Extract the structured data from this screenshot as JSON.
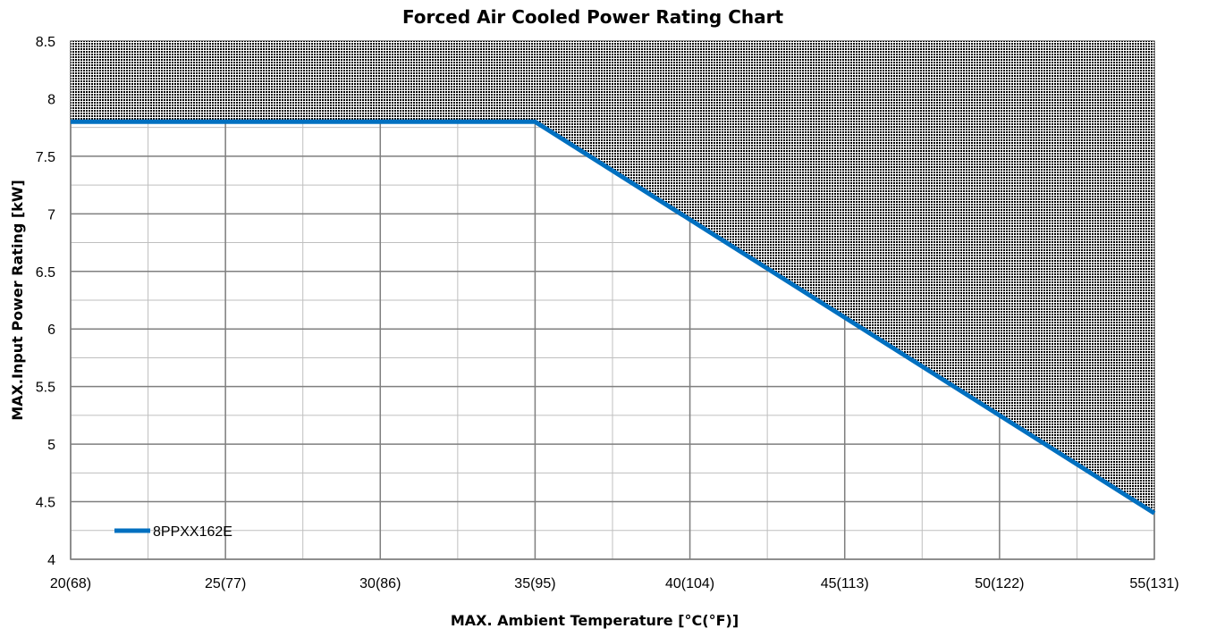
{
  "chart_data": {
    "type": "line",
    "title": "Forced Air Cooled Power Rating Chart",
    "xlabel": "MAX. Ambient Temperature [°C(°F)]",
    "ylabel": "MAX.Input Power Rating [kW]",
    "x_ticks": [
      {
        "value": 20,
        "label": "20(68)"
      },
      {
        "value": 25,
        "label": "25(77)"
      },
      {
        "value": 30,
        "label": "30(86)"
      },
      {
        "value": 35,
        "label": "35(95)"
      },
      {
        "value": 40,
        "label": "40(104)"
      },
      {
        "value": 45,
        "label": "45(113)"
      },
      {
        "value": 50,
        "label": "50(122)"
      },
      {
        "value": 55,
        "label": "55(131)"
      }
    ],
    "y_ticks": [
      "4",
      "4.5",
      "5",
      "5.5",
      "6",
      "6.5",
      "7",
      "7.5",
      "8",
      "8.5"
    ],
    "xlim": [
      20,
      55
    ],
    "ylim": [
      4,
      8.5
    ],
    "minor_x_step": 2.5,
    "minor_y_step": 0.25,
    "grid": true,
    "legend_position": "bottom-left",
    "series": [
      {
        "name": "8PPXX162E",
        "color": "#0070C0",
        "x": [
          20,
          35,
          55
        ],
        "y": [
          7.8,
          7.8,
          4.4
        ]
      }
    ],
    "shaded_region": "above series (exceeds rating)"
  }
}
